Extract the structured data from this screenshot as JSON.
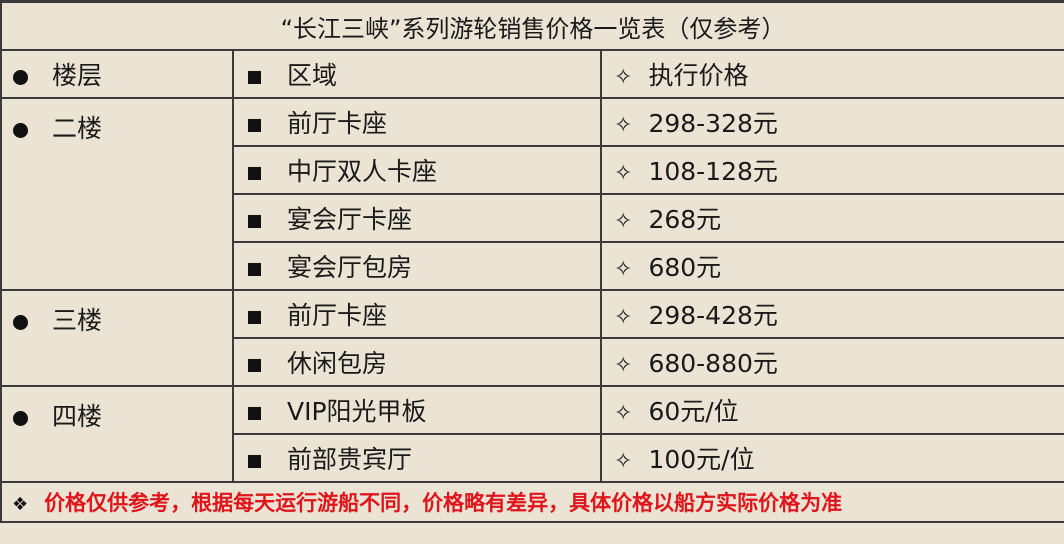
{
  "title": "“长江三峡”系列游轮销售价格一览表（仅参考）",
  "header": {
    "floor": "楼层",
    "area": "区域",
    "price": "执行价格"
  },
  "groups": [
    {
      "floor": "二楼",
      "rows": [
        {
          "area": "前厅卡座",
          "price": "298-328元"
        },
        {
          "area": "中厅双人卡座",
          "price": "108-128元"
        },
        {
          "area": "宴会厅卡座",
          "price": "268元"
        },
        {
          "area": "宴会厅包房",
          "price": "680元"
        }
      ]
    },
    {
      "floor": "三楼",
      "rows": [
        {
          "area": "前厅卡座",
          "price": "298-428元"
        },
        {
          "area": "休闲包房",
          "price": "680-880元"
        }
      ]
    },
    {
      "floor": "四楼",
      "rows": [
        {
          "area": "VIP阳光甲板",
          "price": "60元/位"
        },
        {
          "area": "前部贵宾厅",
          "price": "100元/位"
        }
      ]
    }
  ],
  "footnote": {
    "marker": "❖",
    "text": "价格仅供参考，根据每天运行游船不同，价格略有差异，具体价格以船方实际价格为准",
    "color": "#e0141b"
  },
  "icons": {
    "floor": "bullet-circle",
    "area": "bullet-square",
    "price": "diamond-star ✧"
  }
}
